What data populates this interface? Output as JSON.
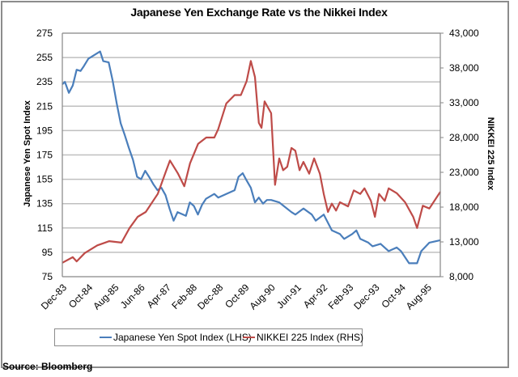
{
  "source": "Source:  Bloomberg",
  "colors": {
    "yen": "#4a7ebb",
    "nikkei": "#be4b48",
    "grid": "#bfbfbf",
    "axis": "#868686"
  },
  "chart_data": {
    "type": "line",
    "title": "Japanese Yen Exchange Rate vs the Nikkei Index",
    "xlabel": "",
    "ylabel_left": "Japanese Yen Spot Index",
    "ylabel_right": "NIKKEI 225 Index",
    "ylim_left": [
      75,
      275
    ],
    "ylim_right": [
      8000,
      43000
    ],
    "yticks_left": [
      "275",
      "255",
      "235",
      "215",
      "195",
      "175",
      "155",
      "135",
      "115",
      "95",
      "75"
    ],
    "yticks_right": [
      "43,000",
      "38,000",
      "33,000",
      "28,000",
      "23,000",
      "18,000",
      "13,000",
      "8,000"
    ],
    "x_tick_labels": [
      "Dec-83",
      "Oct-84",
      "Aug-85",
      "Jun-86",
      "Apr-87",
      "Feb-88",
      "Dec-88",
      "Oct-89",
      "Aug-90",
      "Jun-91",
      "Apr-92",
      "Feb-93",
      "Dec-93",
      "Oct-94",
      "Aug-95"
    ],
    "x_range_months": [
      0,
      145
    ],
    "x_tick_interval_months": 10,
    "grid": true,
    "legend": "bottom",
    "series": [
      {
        "name": "Japanese Yen Spot Index (LHS)",
        "axis": "left",
        "color": "#4a7ebb",
        "points": [
          [
            0,
            233
          ],
          [
            1,
            235
          ],
          [
            2.5,
            226
          ],
          [
            4,
            232
          ],
          [
            5.5,
            245
          ],
          [
            7,
            244
          ],
          [
            8.3,
            248
          ],
          [
            10,
            254
          ],
          [
            14.5,
            260
          ],
          [
            15.7,
            252
          ],
          [
            17.8,
            251
          ],
          [
            19.3,
            236
          ],
          [
            20.9,
            217
          ],
          [
            22.4,
            201
          ],
          [
            24,
            191
          ],
          [
            25.5,
            181
          ],
          [
            27.1,
            171
          ],
          [
            28.7,
            157
          ],
          [
            30.2,
            155
          ],
          [
            31.8,
            162
          ],
          [
            33.3,
            157
          ],
          [
            34.9,
            151
          ],
          [
            36.5,
            146
          ],
          [
            38,
            148
          ],
          [
            39.6,
            142
          ],
          [
            41.1,
            131
          ],
          [
            42.7,
            121
          ],
          [
            44.2,
            128
          ],
          [
            47.4,
            125
          ],
          [
            48.9,
            136
          ],
          [
            50.5,
            133
          ],
          [
            52,
            126
          ],
          [
            53.6,
            134
          ],
          [
            55.1,
            139
          ],
          [
            58.3,
            143
          ],
          [
            59.8,
            140
          ],
          [
            62.9,
            143
          ],
          [
            66.1,
            146
          ],
          [
            67.6,
            157
          ],
          [
            69.2,
            160
          ],
          [
            70.7,
            154
          ],
          [
            72.3,
            148
          ],
          [
            73.9,
            136
          ],
          [
            75.4,
            140
          ],
          [
            77,
            135
          ],
          [
            78.5,
            138
          ],
          [
            80.1,
            138
          ],
          [
            83.2,
            136
          ],
          [
            87.9,
            128
          ],
          [
            89.4,
            126
          ],
          [
            92.5,
            131
          ],
          [
            95.7,
            126
          ],
          [
            97.2,
            121
          ],
          [
            100.3,
            126
          ],
          [
            103.4,
            113
          ],
          [
            106.5,
            110
          ],
          [
            108.1,
            106
          ],
          [
            111.2,
            110
          ],
          [
            112.8,
            113
          ],
          [
            114.3,
            106
          ],
          [
            117.4,
            103
          ],
          [
            119,
            100
          ],
          [
            122.1,
            102
          ],
          [
            125.2,
            96
          ],
          [
            128.3,
            99
          ],
          [
            129.9,
            96
          ],
          [
            133,
            86
          ],
          [
            136.1,
            86
          ],
          [
            137.7,
            96
          ],
          [
            140.8,
            103
          ],
          [
            145,
            105
          ]
        ]
      },
      {
        "name": "NIKKEI 225 Index (RHS)",
        "axis": "right",
        "color": "#be4b48",
        "points": [
          [
            0,
            10000
          ],
          [
            4,
            10800
          ],
          [
            5.5,
            10200
          ],
          [
            8.6,
            11400
          ],
          [
            13.4,
            12500
          ],
          [
            18,
            13100
          ],
          [
            22.7,
            12900
          ],
          [
            25.8,
            15000
          ],
          [
            28.9,
            16600
          ],
          [
            32,
            17300
          ],
          [
            36.6,
            19900
          ],
          [
            39.7,
            23100
          ],
          [
            41.3,
            24700
          ],
          [
            44.4,
            22800
          ],
          [
            46.8,
            21000
          ],
          [
            49,
            24300
          ],
          [
            52.1,
            27100
          ],
          [
            55.2,
            28000
          ],
          [
            58.3,
            28000
          ],
          [
            59.8,
            29200
          ],
          [
            62.9,
            32900
          ],
          [
            66.1,
            34100
          ],
          [
            68.5,
            34100
          ],
          [
            70.7,
            36100
          ],
          [
            72.3,
            39000
          ],
          [
            73.9,
            36700
          ],
          [
            75.4,
            30100
          ],
          [
            76.4,
            29400
          ],
          [
            77.6,
            33200
          ],
          [
            80.1,
            31500
          ],
          [
            81.6,
            21200
          ],
          [
            83.2,
            25000
          ],
          [
            84.7,
            23300
          ],
          [
            86.3,
            23800
          ],
          [
            87.9,
            26500
          ],
          [
            89.4,
            26100
          ],
          [
            91,
            23300
          ],
          [
            92.5,
            24500
          ],
          [
            94.7,
            22800
          ],
          [
            96.6,
            25000
          ],
          [
            98.8,
            22800
          ],
          [
            100.3,
            19900
          ],
          [
            101.9,
            17300
          ],
          [
            103.4,
            18500
          ],
          [
            105,
            17500
          ],
          [
            106.5,
            18700
          ],
          [
            109.6,
            18100
          ],
          [
            111.8,
            20400
          ],
          [
            114.3,
            19900
          ],
          [
            115.9,
            20700
          ],
          [
            118.4,
            18900
          ],
          [
            119.9,
            16600
          ],
          [
            121.5,
            19900
          ],
          [
            123.7,
            18900
          ],
          [
            125.2,
            20700
          ],
          [
            128.3,
            20000
          ],
          [
            131.5,
            18700
          ],
          [
            134.6,
            16600
          ],
          [
            136.1,
            15000
          ],
          [
            138.3,
            18200
          ],
          [
            140.8,
            17800
          ],
          [
            145,
            20200
          ]
        ]
      }
    ]
  }
}
